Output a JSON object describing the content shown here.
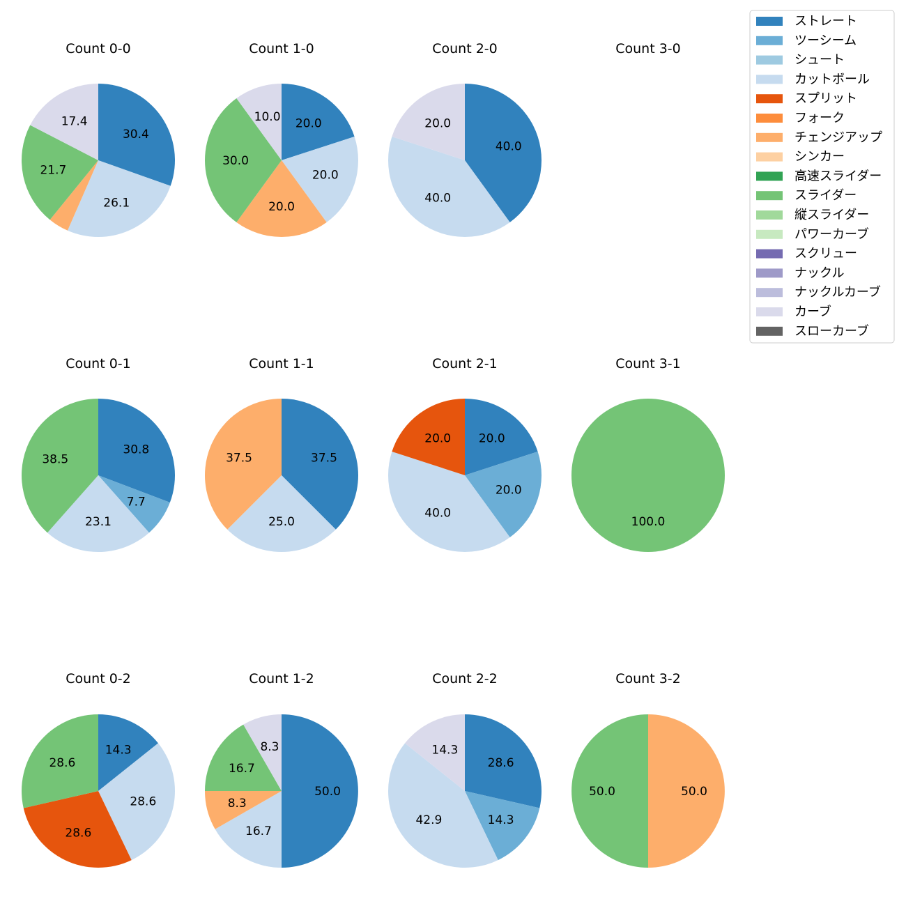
{
  "colors": {
    "ストレート": "#3182bd",
    "ツーシーム": "#6baed6",
    "シュート": "#9ecae1",
    "カットボール": "#c6dbef",
    "スプリット": "#e6550d",
    "フォーク": "#fd8d3c",
    "チェンジアップ": "#fdae6b",
    "シンカー": "#fdd0a2",
    "高速スライダー": "#31a354",
    "スライダー": "#74c476",
    "縦スライダー": "#a1d99b",
    "パワーカーブ": "#c7e9c0",
    "スクリュー": "#756bb1",
    "ナックル": "#9e9ac8",
    "ナックルカーブ": "#bcbddc",
    "カーブ": "#dadaeb",
    "スローカーブ": "#636363"
  },
  "chart_data": {
    "type": "pie",
    "legend": {
      "placement": "top-right",
      "entries": [
        "ストレート",
        "ツーシーム",
        "シュート",
        "カットボール",
        "スプリット",
        "フォーク",
        "チェンジアップ",
        "シンカー",
        "高速スライダー",
        "スライダー",
        "縦スライダー",
        "パワーカーブ",
        "スクリュー",
        "ナックル",
        "ナックルカーブ",
        "カーブ",
        "スローカーブ"
      ]
    },
    "charts": [
      {
        "title": "Count 0-0",
        "slices": [
          {
            "label": "ストレート",
            "value": 30.4
          },
          {
            "label": "カットボール",
            "value": 26.1
          },
          {
            "label": "チェンジアップ",
            "value": 4.3
          },
          {
            "label": "スライダー",
            "value": 21.7
          },
          {
            "label": "カーブ",
            "value": 17.4
          }
        ]
      },
      {
        "title": "Count 1-0",
        "slices": [
          {
            "label": "ストレート",
            "value": 20.0
          },
          {
            "label": "カットボール",
            "value": 20.0
          },
          {
            "label": "チェンジアップ",
            "value": 20.0
          },
          {
            "label": "スライダー",
            "value": 30.0
          },
          {
            "label": "カーブ",
            "value": 10.0
          }
        ]
      },
      {
        "title": "Count 2-0",
        "slices": [
          {
            "label": "ストレート",
            "value": 40.0
          },
          {
            "label": "カットボール",
            "value": 40.0
          },
          {
            "label": "カーブ",
            "value": 20.0
          }
        ]
      },
      {
        "title": "Count 3-0",
        "slices": []
      },
      {
        "title": "Count 0-1",
        "slices": [
          {
            "label": "ストレート",
            "value": 30.8
          },
          {
            "label": "ツーシーム",
            "value": 7.7
          },
          {
            "label": "カットボール",
            "value": 23.1
          },
          {
            "label": "スライダー",
            "value": 38.5
          }
        ]
      },
      {
        "title": "Count 1-1",
        "slices": [
          {
            "label": "ストレート",
            "value": 37.5
          },
          {
            "label": "カットボール",
            "value": 25.0
          },
          {
            "label": "チェンジアップ",
            "value": 37.5
          }
        ]
      },
      {
        "title": "Count 2-1",
        "slices": [
          {
            "label": "ストレート",
            "value": 20.0
          },
          {
            "label": "ツーシーム",
            "value": 20.0
          },
          {
            "label": "カットボール",
            "value": 40.0
          },
          {
            "label": "スプリット",
            "value": 20.0
          }
        ]
      },
      {
        "title": "Count 3-1",
        "slices": [
          {
            "label": "スライダー",
            "value": 100.0
          }
        ]
      },
      {
        "title": "Count 0-2",
        "slices": [
          {
            "label": "ストレート",
            "value": 14.3
          },
          {
            "label": "カットボール",
            "value": 28.6
          },
          {
            "label": "スプリット",
            "value": 28.6
          },
          {
            "label": "スライダー",
            "value": 28.6
          }
        ]
      },
      {
        "title": "Count 1-2",
        "slices": [
          {
            "label": "ストレート",
            "value": 50.0
          },
          {
            "label": "カットボール",
            "value": 16.7
          },
          {
            "label": "チェンジアップ",
            "value": 8.3
          },
          {
            "label": "スライダー",
            "value": 16.7
          },
          {
            "label": "カーブ",
            "value": 8.3
          }
        ]
      },
      {
        "title": "Count 2-2",
        "slices": [
          {
            "label": "ストレート",
            "value": 28.6
          },
          {
            "label": "ツーシーム",
            "value": 14.3
          },
          {
            "label": "カットボール",
            "value": 42.9
          },
          {
            "label": "カーブ",
            "value": 14.3
          }
        ]
      },
      {
        "title": "Count 3-2",
        "slices": [
          {
            "label": "チェンジアップ",
            "value": 50.0
          },
          {
            "label": "スライダー",
            "value": 50.0
          }
        ]
      }
    ]
  }
}
